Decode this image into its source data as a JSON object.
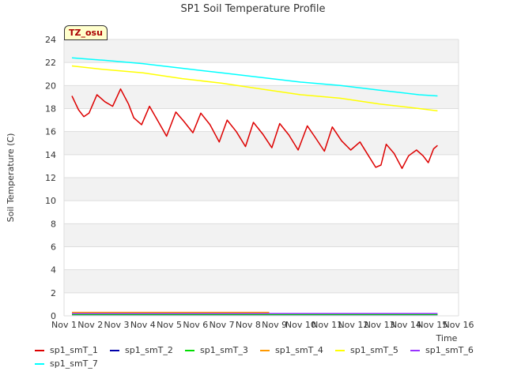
{
  "chart_data": {
    "type": "line",
    "title": "SP1 Soil Temperature Profile",
    "xlabel": "Time",
    "ylabel": "Soil Temperature (C)",
    "ylim": [
      0,
      24
    ],
    "xlim": [
      1,
      16
    ],
    "grid": true,
    "badge": "TZ_osu",
    "x_ticks": [
      "Nov 1",
      "Nov 2",
      "Nov 3",
      "Nov 4",
      "Nov 5",
      "Nov 6",
      "Nov 7",
      "Nov 8",
      "Nov 9",
      "Nov 10",
      "Nov 11",
      "Nov 12",
      "Nov 13",
      "Nov 14",
      "Nov 15",
      "Nov 16"
    ],
    "y_ticks": [
      "0",
      "2",
      "4",
      "6",
      "8",
      "10",
      "12",
      "14",
      "16",
      "18",
      "20",
      "22",
      "24"
    ],
    "legend_position": "bottom",
    "series": [
      {
        "name": "sp1_smT_1",
        "color": "#dd0000",
        "x": [
          1.3,
          1.55,
          1.75,
          1.95,
          2.25,
          2.55,
          2.85,
          3.15,
          3.45,
          3.65,
          3.95,
          4.25,
          4.55,
          4.9,
          5.25,
          5.55,
          5.9,
          6.2,
          6.55,
          6.9,
          7.2,
          7.55,
          7.9,
          8.2,
          8.55,
          8.9,
          9.2,
          9.55,
          9.9,
          10.25,
          10.55,
          10.9,
          11.2,
          11.55,
          11.9,
          12.25,
          12.55,
          12.85,
          13.05,
          13.25,
          13.55,
          13.85,
          14.1,
          14.4,
          14.65,
          14.85,
          15.05,
          15.2
        ],
        "y": [
          19.1,
          17.9,
          17.3,
          17.6,
          19.2,
          18.6,
          18.2,
          19.7,
          18.4,
          17.2,
          16.6,
          18.2,
          17.0,
          15.6,
          17.7,
          16.9,
          15.9,
          17.6,
          16.6,
          15.1,
          17.0,
          16.0,
          14.7,
          16.8,
          15.8,
          14.6,
          16.7,
          15.7,
          14.4,
          16.5,
          15.5,
          14.3,
          16.4,
          15.2,
          14.4,
          15.1,
          14.0,
          12.9,
          13.1,
          14.9,
          14.1,
          12.8,
          13.9,
          14.4,
          13.9,
          13.3,
          14.5,
          14.8
        ]
      },
      {
        "name": "sp1_smT_2",
        "color": "#0000aa",
        "x": [
          1.3,
          15.2
        ],
        "y": [
          0.1,
          0.1
        ]
      },
      {
        "name": "sp1_smT_3",
        "color": "#00dd00",
        "x": [
          1.3,
          15.2
        ],
        "y": [
          0.12,
          0.12
        ]
      },
      {
        "name": "sp1_smT_4",
        "color": "#ff9900",
        "x": [
          1.3,
          8.8
        ],
        "y": [
          0.3,
          0.3
        ]
      },
      {
        "name": "sp1_smT_5",
        "color": "#ffff00",
        "x": [
          1.3,
          2.5,
          4.0,
          5.5,
          7.0,
          8.5,
          10.0,
          11.5,
          13.0,
          14.5,
          15.2
        ],
        "y": [
          21.7,
          21.4,
          21.1,
          20.6,
          20.2,
          19.7,
          19.2,
          18.9,
          18.4,
          18.0,
          17.8
        ]
      },
      {
        "name": "sp1_smT_6",
        "color": "#9933ff",
        "x": [
          1.3,
          15.2
        ],
        "y": [
          0.2,
          0.2
        ]
      },
      {
        "name": "sp1_smT_7",
        "color": "#00ffff",
        "x": [
          1.3,
          2.5,
          4.0,
          5.5,
          7.0,
          8.5,
          10.0,
          11.5,
          13.0,
          14.5,
          15.2
        ],
        "y": [
          22.4,
          22.2,
          21.9,
          21.5,
          21.1,
          20.7,
          20.3,
          20.0,
          19.6,
          19.2,
          19.1
        ]
      }
    ]
  }
}
